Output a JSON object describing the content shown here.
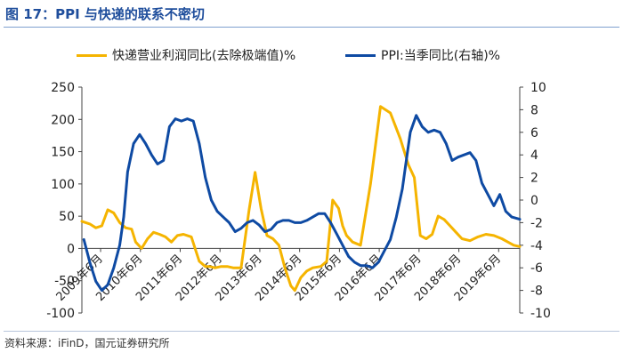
{
  "figure": {
    "title": "图 17：PPI 与快递的联系不密切",
    "source": "资料来源：iFinD，国元证券研究所"
  },
  "colors": {
    "title": "#1f4e9c",
    "series_left": "#f5b400",
    "series_right": "#0e4aa3",
    "axis": "#444444"
  },
  "chart_data": {
    "type": "line",
    "title": "",
    "legend_position": "top",
    "grid": false,
    "x_ticks": [
      "2009年6月",
      "2010年6月",
      "2011年6月",
      "2012年6月",
      "2013年6月",
      "2014年6月",
      "2015年6月",
      "2016年6月",
      "2017年6月",
      "2018年6月",
      "2019年6月"
    ],
    "x_tick_positions": [
      2009.42,
      2010.42,
      2011.42,
      2012.42,
      2013.42,
      2014.42,
      2015.42,
      2016.42,
      2017.42,
      2018.42,
      2019.42
    ],
    "xlim": [
      2008.95,
      2019.95
    ],
    "y_left": {
      "ylim": [
        -100,
        250
      ],
      "ticks": [
        "-100",
        "-50",
        "0",
        "50",
        "100",
        "150",
        "200",
        "250"
      ],
      "tick_values": [
        -100,
        -50,
        0,
        50,
        100,
        150,
        200,
        250
      ]
    },
    "y_right": {
      "ylim": [
        -10,
        10
      ],
      "ticks": [
        "-10",
        "-8",
        "-6",
        "-4",
        "-2",
        "0",
        "2",
        "4",
        "6",
        "8",
        "10"
      ],
      "tick_values": [
        -10,
        -8,
        -6,
        -4,
        -2,
        0,
        2,
        4,
        6,
        8,
        10
      ]
    },
    "series": [
      {
        "name": "快递营业利润同比(去除极端值)%",
        "axis": "left",
        "x": [
          2008.95,
          2009.15,
          2009.3,
          2009.45,
          2009.6,
          2009.75,
          2009.9,
          2010.05,
          2010.2,
          2010.3,
          2010.45,
          2010.6,
          2010.75,
          2010.9,
          2011.05,
          2011.2,
          2011.35,
          2011.5,
          2011.7,
          2011.9,
          2012.05,
          2012.15,
          2012.3,
          2012.45,
          2012.6,
          2012.75,
          2012.95,
          2013.15,
          2013.3,
          2013.45,
          2013.6,
          2013.75,
          2013.9,
          2014.05,
          2014.2,
          2014.3,
          2014.45,
          2014.6,
          2014.75,
          2014.95,
          2015.1,
          2015.25,
          2015.4,
          2015.5,
          2015.6,
          2015.75,
          2015.95,
          2016.2,
          2016.45,
          2016.7,
          2016.95,
          2017.15,
          2017.3,
          2017.45,
          2017.6,
          2017.75,
          2017.9,
          2018.05,
          2018.2,
          2018.35,
          2018.5,
          2018.7,
          2018.9,
          2019.1,
          2019.3,
          2019.5,
          2019.65,
          2019.8,
          2019.95
        ],
        "values": [
          42,
          38,
          32,
          35,
          60,
          55,
          40,
          32,
          30,
          10,
          0,
          15,
          25,
          22,
          18,
          10,
          20,
          22,
          18,
          -20,
          -28,
          -28,
          -30,
          -28,
          -28,
          -30,
          -30,
          60,
          118,
          62,
          20,
          15,
          5,
          -30,
          -58,
          -65,
          -45,
          -35,
          -30,
          -28,
          -20,
          75,
          62,
          35,
          20,
          10,
          5,
          100,
          220,
          210,
          170,
          130,
          110,
          20,
          15,
          22,
          50,
          45,
          35,
          25,
          15,
          12,
          18,
          22,
          20,
          15,
          10,
          5,
          3
        ]
      },
      {
        "name": "PPI:当季同比(右轴)%",
        "axis": "right",
        "x": [
          2009.0,
          2009.15,
          2009.3,
          2009.45,
          2009.6,
          2009.75,
          2009.9,
          2010.0,
          2010.1,
          2010.25,
          2010.4,
          2010.55,
          2010.7,
          2010.85,
          2011.0,
          2011.15,
          2011.3,
          2011.45,
          2011.6,
          2011.75,
          2011.9,
          2012.05,
          2012.2,
          2012.35,
          2012.5,
          2012.65,
          2012.8,
          2012.95,
          2013.1,
          2013.25,
          2013.4,
          2013.55,
          2013.7,
          2013.85,
          2014.0,
          2014.15,
          2014.3,
          2014.45,
          2014.6,
          2014.75,
          2014.9,
          2015.05,
          2015.2,
          2015.35,
          2015.5,
          2015.65,
          2015.8,
          2015.95,
          2016.1,
          2016.25,
          2016.4,
          2016.55,
          2016.7,
          2016.85,
          2017.0,
          2017.1,
          2017.2,
          2017.35,
          2017.5,
          2017.65,
          2017.8,
          2017.95,
          2018.1,
          2018.25,
          2018.4,
          2018.55,
          2018.7,
          2018.85,
          2019.0,
          2019.15,
          2019.3,
          2019.45,
          2019.6,
          2019.75,
          2019.95
        ],
        "values": [
          -3.5,
          -5.5,
          -7.2,
          -8.0,
          -7.5,
          -6.0,
          -4.0,
          -1.5,
          2.5,
          5.0,
          5.8,
          5.0,
          4.0,
          3.2,
          3.5,
          6.5,
          7.2,
          7.0,
          7.2,
          7.0,
          5.0,
          2.0,
          0.0,
          -1.0,
          -1.5,
          -2.0,
          -2.8,
          -2.5,
          -2.0,
          -1.8,
          -2.2,
          -2.8,
          -2.6,
          -2.0,
          -1.8,
          -1.8,
          -2.0,
          -2.0,
          -1.8,
          -1.5,
          -1.2,
          -1.2,
          -2.0,
          -3.0,
          -4.0,
          -5.0,
          -5.5,
          -5.8,
          -5.8,
          -6.0,
          -5.5,
          -4.5,
          -3.5,
          -1.5,
          1.0,
          3.5,
          6.0,
          7.5,
          6.5,
          6.0,
          6.2,
          6.0,
          5.0,
          3.5,
          3.8,
          4.0,
          4.2,
          3.5,
          1.5,
          0.5,
          -0.5,
          0.5,
          -1.0,
          -1.5,
          -1.7
        ]
      }
    ]
  }
}
